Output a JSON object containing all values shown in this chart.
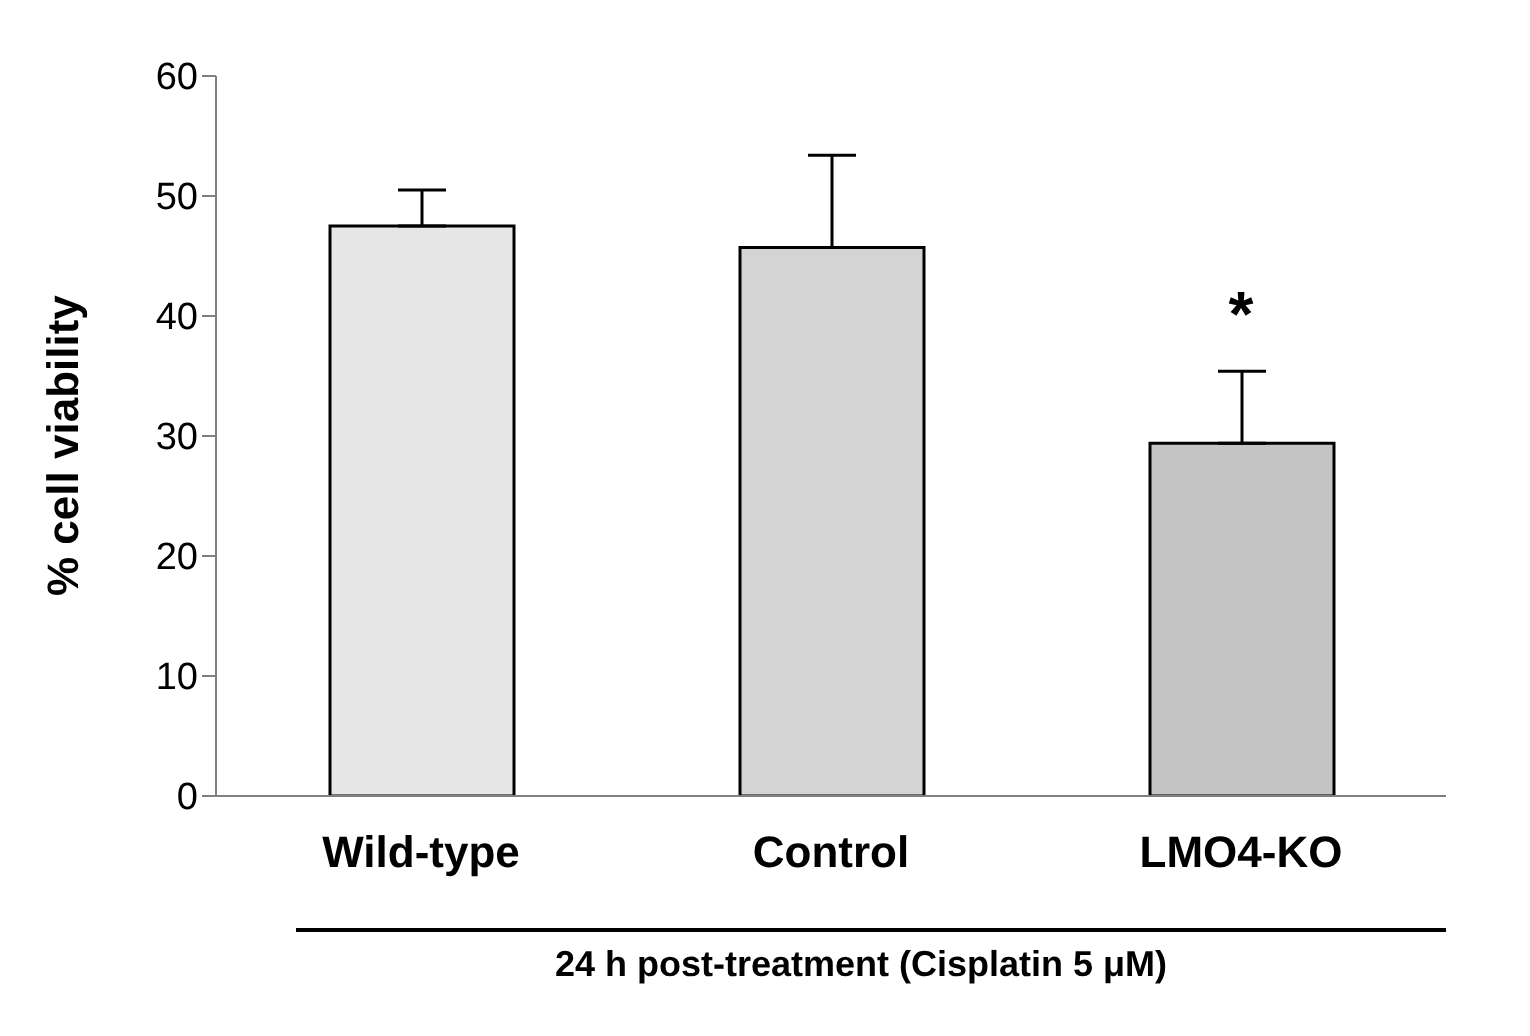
{
  "chart_data": {
    "type": "bar",
    "xlabel": "24 h post-treatment (Cisplatin 5 μM)",
    "ylabel": "% cell viability",
    "categories": [
      "Wild-type",
      "Control",
      "LMO4-KO"
    ],
    "values": [
      47.5,
      45.7,
      29.4
    ],
    "errors": [
      [
        47.5,
        50.5
      ],
      [
        45.7,
        53.4
      ],
      [
        29.4,
        35.4
      ]
    ],
    "colors": [
      "#e6e6e6",
      "#d4d4d4",
      "#c4c4c4"
    ],
    "ylim": [
      0,
      60
    ],
    "yticks": [
      0,
      10,
      20,
      30,
      40,
      50,
      60
    ],
    "grid": false,
    "annotations": [
      "*"
    ]
  }
}
